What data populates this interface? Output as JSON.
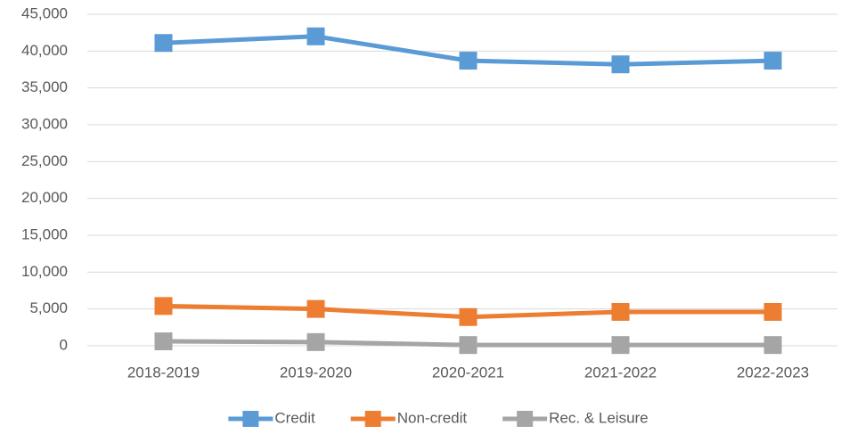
{
  "chart_data": {
    "type": "line",
    "categories": [
      "2018-2019",
      "2019-2020",
      "2020-2021",
      "2021-2022",
      "2022-2023"
    ],
    "series": [
      {
        "name": "Credit",
        "color": "#5b9bd5",
        "values": [
          41100,
          42000,
          38700,
          38200,
          38700
        ]
      },
      {
        "name": "Non-credit",
        "color": "#ed7d31",
        "values": [
          5400,
          5000,
          3900,
          4600,
          4600
        ]
      },
      {
        "name": "Rec. & Leisure",
        "color": "#a5a5a5",
        "values": [
          600,
          500,
          100,
          100,
          100
        ]
      }
    ],
    "ylim": [
      0,
      45000
    ],
    "yticks": [
      0,
      {
        "value": 5000,
        "label": "5,000"
      },
      {
        "value": 10000,
        "label": "10,000"
      },
      {
        "value": 15000,
        "label": "15,000"
      },
      {
        "value": 20000,
        "label": "20,000"
      },
      {
        "value": 25000,
        "label": "25,000"
      },
      {
        "value": 30000,
        "label": "30,000"
      },
      {
        "value": 35000,
        "label": "35,000"
      },
      {
        "value": 40000,
        "label": "40,000"
      },
      {
        "value": 45000,
        "label": "45,000"
      }
    ],
    "grid": true,
    "legend": "bottom"
  }
}
